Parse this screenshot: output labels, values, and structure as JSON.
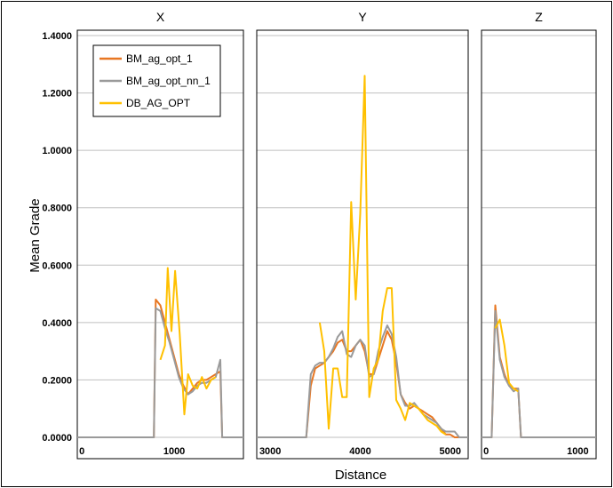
{
  "chart_data": {
    "type": "line",
    "ylabel": "Mean Grade",
    "xlabel": "Distance",
    "ylim": [
      0,
      1.4
    ],
    "yticks": [
      "0.0000",
      "0.2000",
      "0.4000",
      "0.6000",
      "0.8000",
      "1.0000",
      "1.2000",
      "1.4000"
    ],
    "ytick_values": [
      0,
      0.2,
      0.4,
      0.6,
      0.8,
      1.0,
      1.2,
      1.4
    ],
    "grid": true,
    "legend_position": "top-left of panel X",
    "legend": [
      {
        "name": "BM_ag_opt_1",
        "color": "#E87722"
      },
      {
        "name": "BM_ag_opt_nn_1",
        "color": "#9A9A9A"
      },
      {
        "name": "DB_AG_OPT",
        "color": "#FFC000"
      }
    ],
    "panels": [
      {
        "title": "X",
        "xlim": [
          -50,
          1750
        ],
        "xticks": [
          0,
          1000
        ],
        "series": [
          {
            "name": "BM_ag_opt_1",
            "points": [
              [
                -50,
                0
              ],
              [
                780,
                0
              ],
              [
                800,
                0.48
              ],
              [
                850,
                0.46
              ],
              [
                900,
                0.4
              ],
              [
                950,
                0.34
              ],
              [
                1000,
                0.28
              ],
              [
                1050,
                0.22
              ],
              [
                1100,
                0.18
              ],
              [
                1150,
                0.15
              ],
              [
                1200,
                0.17
              ],
              [
                1250,
                0.19
              ],
              [
                1300,
                0.2
              ],
              [
                1350,
                0.2
              ],
              [
                1400,
                0.21
              ],
              [
                1450,
                0.22
              ],
              [
                1500,
                0.23
              ],
              [
                1520,
                0
              ],
              [
                1750,
                0
              ]
            ]
          },
          {
            "name": "BM_ag_opt_nn_1",
            "points": [
              [
                -50,
                0
              ],
              [
                780,
                0
              ],
              [
                800,
                0.45
              ],
              [
                850,
                0.44
              ],
              [
                900,
                0.38
              ],
              [
                950,
                0.33
              ],
              [
                1000,
                0.27
              ],
              [
                1050,
                0.21
              ],
              [
                1100,
                0.17
              ],
              [
                1150,
                0.15
              ],
              [
                1200,
                0.16
              ],
              [
                1250,
                0.18
              ],
              [
                1300,
                0.19
              ],
              [
                1350,
                0.19
              ],
              [
                1400,
                0.2
              ],
              [
                1450,
                0.21
              ],
              [
                1500,
                0.27
              ],
              [
                1520,
                0
              ],
              [
                1750,
                0
              ]
            ]
          },
          {
            "name": "DB_AG_OPT",
            "points": [
              [
                850,
                0.27
              ],
              [
                900,
                0.32
              ],
              [
                930,
                0.59
              ],
              [
                970,
                0.37
              ],
              [
                1010,
                0.58
              ],
              [
                1060,
                0.36
              ],
              [
                1110,
                0.08
              ],
              [
                1150,
                0.22
              ],
              [
                1200,
                0.18
              ],
              [
                1250,
                0.17
              ],
              [
                1300,
                0.21
              ],
              [
                1350,
                0.17
              ],
              [
                1400,
                0.2
              ],
              [
                1450,
                0.21
              ]
            ]
          }
        ]
      },
      {
        "title": "Y",
        "xlim": [
          2850,
          5200
        ],
        "xticks": [
          3000,
          4000,
          5000
        ],
        "series": [
          {
            "name": "BM_ag_opt_1",
            "points": [
              [
                2850,
                0
              ],
              [
                3400,
                0
              ],
              [
                3450,
                0.18
              ],
              [
                3500,
                0.24
              ],
              [
                3550,
                0.25
              ],
              [
                3600,
                0.26
              ],
              [
                3650,
                0.28
              ],
              [
                3700,
                0.3
              ],
              [
                3750,
                0.33
              ],
              [
                3800,
                0.34
              ],
              [
                3850,
                0.3
              ],
              [
                3900,
                0.3
              ],
              [
                3950,
                0.32
              ],
              [
                4000,
                0.34
              ],
              [
                4050,
                0.3
              ],
              [
                4100,
                0.22
              ],
              [
                4150,
                0.22
              ],
              [
                4200,
                0.27
              ],
              [
                4250,
                0.32
              ],
              [
                4300,
                0.37
              ],
              [
                4350,
                0.34
              ],
              [
                4400,
                0.26
              ],
              [
                4450,
                0.15
              ],
              [
                4500,
                0.12
              ],
              [
                4550,
                0.1
              ],
              [
                4600,
                0.11
              ],
              [
                4650,
                0.1
              ],
              [
                4700,
                0.09
              ],
              [
                4750,
                0.08
              ],
              [
                4800,
                0.07
              ],
              [
                4850,
                0.05
              ],
              [
                4900,
                0.03
              ],
              [
                4950,
                0.01
              ],
              [
                5000,
                0.01
              ],
              [
                5050,
                0
              ],
              [
                5200,
                0
              ]
            ]
          },
          {
            "name": "BM_ag_opt_nn_1",
            "points": [
              [
                2850,
                0
              ],
              [
                3400,
                0
              ],
              [
                3450,
                0.22
              ],
              [
                3500,
                0.25
              ],
              [
                3550,
                0.26
              ],
              [
                3600,
                0.26
              ],
              [
                3650,
                0.28
              ],
              [
                3700,
                0.31
              ],
              [
                3750,
                0.35
              ],
              [
                3800,
                0.37
              ],
              [
                3850,
                0.29
              ],
              [
                3900,
                0.28
              ],
              [
                3950,
                0.32
              ],
              [
                4000,
                0.34
              ],
              [
                4050,
                0.32
              ],
              [
                4100,
                0.21
              ],
              [
                4150,
                0.22
              ],
              [
                4200,
                0.3
              ],
              [
                4250,
                0.35
              ],
              [
                4300,
                0.39
              ],
              [
                4350,
                0.36
              ],
              [
                4400,
                0.28
              ],
              [
                4450,
                0.15
              ],
              [
                4500,
                0.11
              ],
              [
                4550,
                0.11
              ],
              [
                4600,
                0.12
              ],
              [
                4650,
                0.1
              ],
              [
                4700,
                0.08
              ],
              [
                4750,
                0.07
              ],
              [
                4800,
                0.06
              ],
              [
                4850,
                0.05
              ],
              [
                4900,
                0.03
              ],
              [
                4950,
                0.02
              ],
              [
                5000,
                0.02
              ],
              [
                5050,
                0.02
              ],
              [
                5100,
                0
              ],
              [
                5200,
                0
              ]
            ]
          },
          {
            "name": "DB_AG_OPT",
            "points": [
              [
                3550,
                0.4
              ],
              [
                3600,
                0.3
              ],
              [
                3650,
                0.03
              ],
              [
                3700,
                0.24
              ],
              [
                3750,
                0.24
              ],
              [
                3800,
                0.14
              ],
              [
                3850,
                0.14
              ],
              [
                3900,
                0.82
              ],
              [
                3950,
                0.48
              ],
              [
                4000,
                0.78
              ],
              [
                4050,
                1.26
              ],
              [
                4100,
                0.14
              ],
              [
                4150,
                0.24
              ],
              [
                4200,
                0.27
              ],
              [
                4250,
                0.44
              ],
              [
                4300,
                0.52
              ],
              [
                4350,
                0.52
              ],
              [
                4400,
                0.13
              ],
              [
                4450,
                0.1
              ],
              [
                4500,
                0.06
              ],
              [
                4550,
                0.12
              ],
              [
                4600,
                0.11
              ],
              [
                4650,
                0.1
              ],
              [
                4700,
                0.08
              ],
              [
                4750,
                0.06
              ],
              [
                4800,
                0.05
              ],
              [
                4850,
                0.04
              ],
              [
                4900,
                0.02
              ],
              [
                4950,
                0.01
              ]
            ]
          }
        ]
      },
      {
        "title": "Z",
        "xlim": [
          -50,
          1200
        ],
        "xticks": [
          0,
          1000
        ],
        "series": [
          {
            "name": "BM_ag_opt_1",
            "points": [
              [
                -50,
                0
              ],
              [
                60,
                0
              ],
              [
                100,
                0.46
              ],
              [
                150,
                0.28
              ],
              [
                200,
                0.22
              ],
              [
                250,
                0.18
              ],
              [
                300,
                0.17
              ],
              [
                350,
                0.17
              ],
              [
                380,
                0
              ],
              [
                1200,
                0
              ]
            ]
          },
          {
            "name": "BM_ag_opt_nn_1",
            "points": [
              [
                -50,
                0
              ],
              [
                60,
                0
              ],
              [
                100,
                0.44
              ],
              [
                150,
                0.27
              ],
              [
                200,
                0.21
              ],
              [
                250,
                0.18
              ],
              [
                300,
                0.16
              ],
              [
                350,
                0.17
              ],
              [
                380,
                0
              ],
              [
                1200,
                0
              ]
            ]
          },
          {
            "name": "DB_AG_OPT",
            "points": [
              [
                100,
                0.38
              ],
              [
                150,
                0.41
              ],
              [
                200,
                0.32
              ],
              [
                250,
                0.19
              ],
              [
                300,
                0.17
              ],
              [
                350,
                0.16
              ]
            ]
          }
        ]
      }
    ]
  }
}
